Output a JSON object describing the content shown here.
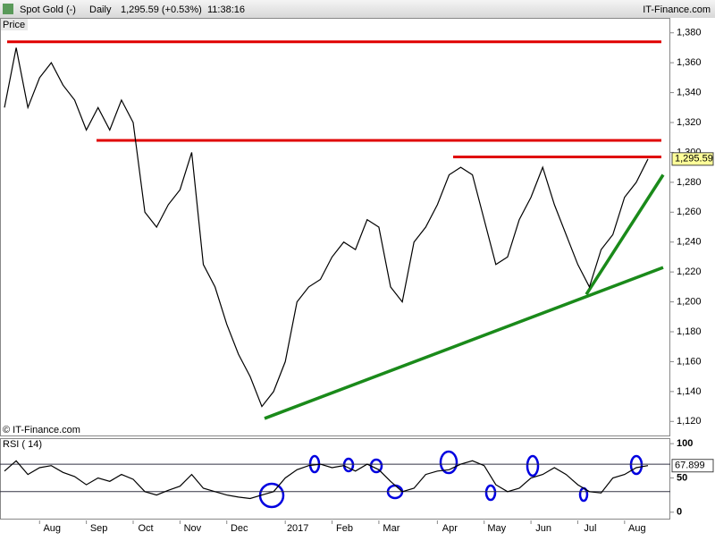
{
  "header": {
    "title": "Spot Gold (-)",
    "period": "Daily",
    "quote": "1,295.59 (+0.53%)",
    "time": "11:38:16",
    "brand": "IT-Finance.com"
  },
  "chart_data": [
    {
      "type": "line",
      "panel_label": "Price",
      "copyright": "© IT-Finance.com",
      "categories": [
        null,
        null,
        null,
        "Aug",
        null,
        null,
        null,
        "Sep",
        null,
        null,
        null,
        "Oct",
        null,
        null,
        null,
        "Nov",
        null,
        null,
        null,
        "Dec",
        null,
        null,
        null,
        null,
        "2017",
        null,
        null,
        null,
        "Feb",
        null,
        null,
        null,
        "Mar",
        null,
        null,
        null,
        null,
        "Apr",
        null,
        null,
        null,
        "May",
        null,
        null,
        null,
        "Jun",
        null,
        null,
        null,
        "Jul",
        null,
        null,
        null,
        "Aug",
        null,
        null
      ],
      "series": [
        {
          "name": "Spot Gold",
          "color": "#000000",
          "values": [
            1330,
            1370,
            1330,
            1350,
            1360,
            1345,
            1335,
            1315,
            1330,
            1315,
            1335,
            1320,
            1260,
            1250,
            1265,
            1275,
            1300,
            1225,
            1210,
            1185,
            1165,
            1150,
            1130,
            1140,
            1160,
            1200,
            1210,
            1215,
            1230,
            1240,
            1235,
            1255,
            1250,
            1210,
            1200,
            1240,
            1250,
            1265,
            1285,
            1290,
            1285,
            1255,
            1225,
            1230,
            1255,
            1270,
            1290,
            1265,
            1245,
            1225,
            1210,
            1235,
            1245,
            1270,
            1280,
            1295.59
          ],
          "last_value_label": "1,295.59"
        }
      ],
      "ylim": [
        1110,
        1390
      ],
      "yticks": [
        {
          "value": 1120,
          "label": "1,120"
        },
        {
          "value": 1140,
          "label": "1,140"
        },
        {
          "value": 1160,
          "label": "1,160"
        },
        {
          "value": 1180,
          "label": "1,180"
        },
        {
          "value": 1200,
          "label": "1,200"
        },
        {
          "value": 1220,
          "label": "1,220"
        },
        {
          "value": 1240,
          "label": "1,240"
        },
        {
          "value": 1260,
          "label": "1,260"
        },
        {
          "value": 1280,
          "label": "1,280"
        },
        {
          "value": 1300,
          "label": "1,300"
        },
        {
          "value": 1320,
          "label": "1,320"
        },
        {
          "value": 1340,
          "label": "1,340"
        },
        {
          "value": 1360,
          "label": "1,360"
        },
        {
          "value": 1380,
          "label": "1,380"
        }
      ],
      "resistance_lines": [
        {
          "value": 1374,
          "color": "#e00000"
        },
        {
          "value": 1308,
          "color": "#e00000"
        },
        {
          "value": 1297,
          "color": "#e00000"
        }
      ],
      "trend_lines": [
        {
          "from": 1122,
          "to": 1223,
          "color": "#1a8a1a"
        },
        {
          "from": 1205,
          "to": 1285,
          "color": "#1a8a1a"
        }
      ]
    },
    {
      "type": "line",
      "panel_label": "RSI ( 14)",
      "series": [
        {
          "name": "RSI",
          "color": "#000000",
          "values": [
            60,
            75,
            55,
            65,
            68,
            58,
            52,
            40,
            50,
            45,
            55,
            48,
            30,
            25,
            32,
            38,
            55,
            35,
            30,
            25,
            22,
            20,
            25,
            30,
            50,
            62,
            68,
            70,
            65,
            68,
            60,
            70,
            62,
            45,
            30,
            35,
            55,
            60,
            62,
            70,
            75,
            68,
            40,
            30,
            35,
            50,
            55,
            65,
            55,
            40,
            30,
            28,
            50,
            55,
            65,
            67.899
          ],
          "last_value_label": "67.899"
        }
      ],
      "ylim": [
        -12,
        108
      ],
      "yticks": [
        0,
        50,
        100
      ],
      "levels": [
        30,
        70
      ]
    }
  ]
}
